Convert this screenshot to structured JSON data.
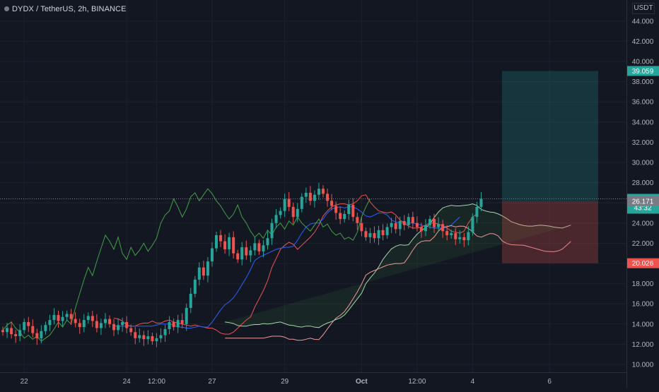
{
  "header": {
    "title": "DYDX / TetherUS, 2h, BINANCE"
  },
  "price_scale": {
    "unit": "USDT"
  },
  "chart_data": {
    "type": "candlestick",
    "symbol": "DYDX / TetherUS",
    "interval": "2h",
    "exchange": "BINANCE",
    "y_axis": {
      "unit": "USDT",
      "range": [
        9.4,
        45.2
      ],
      "ticks": [
        "44.000",
        "42.000",
        "40.000",
        "38.000",
        "36.000",
        "34.000",
        "32.000",
        "30.000",
        "28.000",
        "26.000",
        "24.000",
        "22.000",
        "20.000",
        "18.000",
        "16.000",
        "14.000",
        "12.000",
        "10.000"
      ]
    },
    "x_axis": {
      "ticks": [
        {
          "label": "22",
          "bar": 5
        },
        {
          "label": "24",
          "bar": 29
        },
        {
          "label": "12:00",
          "bar": 36
        },
        {
          "label": "27",
          "bar": 49
        },
        {
          "label": "29",
          "bar": 66
        },
        {
          "label": "Oct",
          "bar": 84
        },
        {
          "label": "12:00",
          "bar": 97
        },
        {
          "label": "4",
          "bar": 110
        },
        {
          "label": "6",
          "bar": 128
        }
      ]
    },
    "ohlc_closes": [
      13.2,
      13.6,
      13.0,
      12.8,
      13.4,
      14.2,
      13.8,
      13.1,
      12.6,
      13.3,
      13.9,
      14.4,
      14.9,
      14.3,
      14.7,
      15.0,
      14.5,
      14.1,
      13.7,
      14.4,
      14.8,
      14.3,
      13.6,
      14.1,
      14.5,
      14.0,
      13.4,
      13.9,
      14.2,
      13.6,
      13.2,
      12.6,
      12.9,
      12.5,
      12.8,
      12.3,
      12.6,
      12.9,
      13.5,
      14.2,
      13.7,
      14.4,
      14.0,
      15.6,
      17.0,
      18.4,
      19.6,
      18.8,
      20.2,
      21.5,
      22.8,
      22.2,
      21.4,
      22.6,
      21.0,
      20.4,
      21.6,
      20.8,
      21.3,
      22.0,
      21.2,
      21.8,
      22.5,
      24.0,
      24.8,
      25.2,
      26.4,
      25.6,
      24.6,
      25.4,
      26.6,
      27.0,
      26.2,
      26.8,
      27.4,
      26.9,
      26.2,
      25.7,
      25.0,
      24.4,
      24.9,
      25.8,
      24.6,
      24.0,
      23.2,
      22.6,
      23.0,
      22.5,
      23.3,
      22.8,
      23.6,
      24.0,
      23.4,
      24.2,
      23.8,
      24.6,
      24.0,
      23.6,
      23.2,
      23.8,
      24.4,
      23.6,
      23.9,
      23.2,
      22.8,
      23.0,
      22.4,
      22.6,
      22.3,
      23.1,
      24.6,
      25.6,
      26.4
    ],
    "tenkan": [
      14.6,
      14.5,
      14.3,
      13.9,
      13.8,
      13.8,
      14.0,
      14.1,
      14.1,
      14.3,
      14.1,
      14.1,
      14.3,
      14.4,
      14.2,
      14.1,
      14.0,
      13.9,
      13.8,
      13.9,
      13.8,
      13.7,
      13.6,
      13.6,
      13.4,
      13.1,
      13.0,
      13.0,
      13.2,
      13.6,
      14.0,
      14.4,
      14.7,
      15.7,
      16.5,
      17.3,
      18.3,
      19.6,
      20.5,
      21.4,
      21.8,
      22.1,
      21.9,
      21.4,
      21.8,
      22.2,
      22.6,
      23.1,
      23.8,
      24.7,
      25.2,
      25.6,
      25.8,
      25.9,
      25.9,
      25.8,
      25.9,
      26.2,
      26.7,
      26.8,
      26.1,
      25.6,
      25.2,
      25.1,
      25.0,
      25.1,
      24.8,
      24.3,
      24.0,
      23.7,
      23.5,
      23.5,
      23.6,
      23.8,
      24.0,
      24.0,
      23.9,
      23.7,
      23.5,
      23.2,
      23.1,
      23.0,
      23.2,
      24.0,
      24.6,
      24.9
    ],
    "kijun": [
      13.8,
      13.8,
      13.8,
      13.8,
      13.8,
      13.8,
      13.8,
      13.8,
      13.8,
      13.8,
      13.9,
      14.0,
      14.0,
      14.0,
      13.9,
      13.7,
      13.7,
      13.6,
      13.6,
      13.7,
      13.8,
      13.7,
      13.7,
      14.2,
      14.8,
      15.4,
      15.9,
      16.2,
      16.6,
      17.2,
      17.9,
      18.6,
      19.4,
      20.3,
      20.6,
      20.8,
      21.0,
      21.2,
      21.4,
      21.5,
      21.6,
      21.6,
      21.7,
      22.3,
      23.0,
      23.6,
      23.9,
      24.0,
      24.0,
      24.4,
      25.0,
      25.4,
      25.5,
      25.6,
      25.5,
      25.6,
      25.6,
      25.4,
      25.1,
      24.7,
      24.6,
      24.8,
      25.0,
      25.0,
      24.8,
      24.3,
      24.1,
      24.0,
      24.0,
      24.0,
      24.0,
      23.9,
      23.8,
      23.7,
      23.6,
      23.5,
      23.5,
      23.5,
      23.6,
      23.8,
      24.2,
      24.6
    ]
  }
}
